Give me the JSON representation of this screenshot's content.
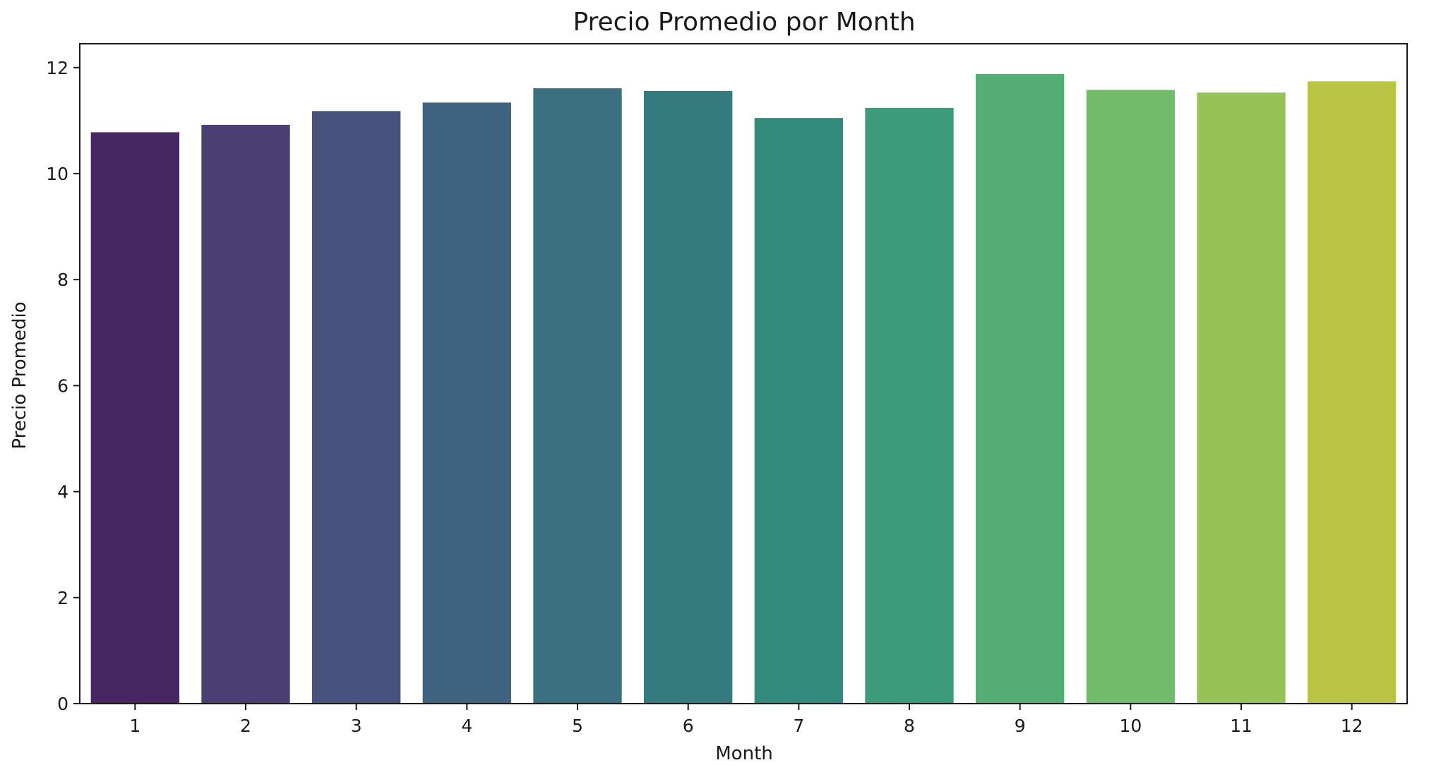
{
  "chart_data": {
    "type": "bar",
    "title": "Precio Promedio por Month",
    "xlabel": "Month",
    "ylabel": "Precio Promedio",
    "categories": [
      "1",
      "2",
      "3",
      "4",
      "5",
      "6",
      "7",
      "8",
      "9",
      "10",
      "11",
      "12"
    ],
    "values": [
      10.78,
      10.92,
      11.18,
      11.34,
      11.61,
      11.56,
      11.05,
      11.24,
      11.88,
      11.58,
      11.53,
      11.74
    ],
    "ylim": [
      0,
      12.45
    ],
    "yticks": [
      0,
      2,
      4,
      6,
      8,
      10,
      12
    ],
    "grid": false,
    "legend": "none",
    "colors": [
      "#482661",
      "#4b3e72",
      "#48527f",
      "#3f6380",
      "#3b7080",
      "#357b7e",
      "#318a7c",
      "#3c9b7b",
      "#55ad76",
      "#72bb6b",
      "#97c258",
      "#bac444"
    ]
  }
}
